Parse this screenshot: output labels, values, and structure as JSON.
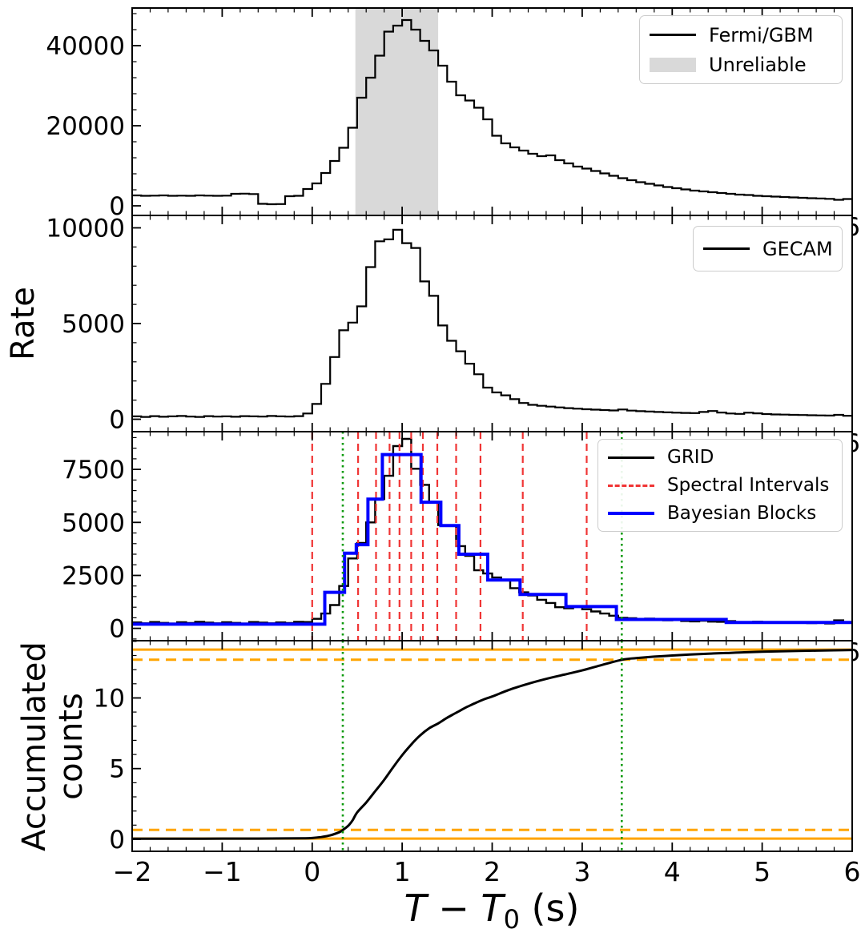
{
  "axes": {
    "xlim": [
      -2,
      6
    ],
    "x_tick_values": [
      -2,
      -1,
      0,
      1,
      2,
      3,
      4,
      5,
      6
    ],
    "x_tick_labels": [
      "−2",
      "−1",
      "0",
      "1",
      "2",
      "3",
      "4",
      "5",
      "6"
    ],
    "x_minor_step": 0.2,
    "xlabel": {
      "variable": "T",
      "minus": "−",
      "reference": "T",
      "reference_sub": "0",
      "unit": "(s)",
      "plain": "T − T0 (s)"
    },
    "ylabel_rate": "Rate",
    "ylabel_accumulated_lines": [
      "Accumulated",
      "counts"
    ],
    "clipped_x_tick_label": "6"
  },
  "colors": {
    "histogram": "#000000",
    "bayesian_blocks": "#0000ff",
    "spectral_intervals": "#f03535",
    "t90_marker": "#0a9a0a",
    "orange_lines": "#ffa500",
    "unreliable_band": "#d9d9d9",
    "legend_border": "#cccccc"
  },
  "chart_data": [
    {
      "type": "bar",
      "subtype": "step-histogram-lightcurve",
      "detector": "Fermi/GBM",
      "ylabel": "Rate",
      "ylim": [
        -2400,
        49400
      ],
      "yticks": [
        0,
        20000,
        40000
      ],
      "yminor_step": 4000,
      "bin_start": -2.0,
      "bin_width": 0.1,
      "rate": [
        2600,
        2500,
        2550,
        2600,
        2500,
        2550,
        2500,
        2600,
        2550,
        2500,
        2550,
        3000,
        3050,
        2950,
        500,
        400,
        450,
        2400,
        2500,
        4200,
        5600,
        8200,
        11200,
        14500,
        19500,
        27000,
        32000,
        37500,
        43500,
        45000,
        46400,
        44000,
        41200,
        38800,
        35000,
        31000,
        27600,
        26300,
        24500,
        21600,
        17500,
        15600,
        14600,
        13800,
        13000,
        12400,
        12600,
        11400,
        10600,
        9800,
        9300,
        8700,
        8100,
        7500,
        6900,
        6400,
        5900,
        5500,
        5100,
        4700,
        4400,
        4100,
        3800,
        3600,
        3400,
        3200,
        3000,
        2800,
        2700,
        2500,
        2400,
        2300,
        2200,
        2100,
        2000,
        1900,
        1850,
        1750,
        1500,
        1700
      ],
      "unreliable_band": [
        0.48,
        1.4
      ],
      "legend": [
        {
          "label": "Fermi/GBM",
          "swatch": "black-line"
        },
        {
          "label": "Unreliable",
          "swatch": "gray-patch"
        }
      ]
    },
    {
      "type": "bar",
      "subtype": "step-histogram-lightcurve",
      "detector": "GECAM",
      "ylabel": "Rate",
      "ylim": [
        -650,
        10650
      ],
      "yticks": [
        0,
        5000,
        10000
      ],
      "yminor_step": 1000,
      "bin_start": -2.0,
      "bin_width": 0.1,
      "rate": [
        150,
        120,
        160,
        130,
        150,
        170,
        140,
        120,
        160,
        140,
        150,
        130,
        160,
        150,
        140,
        170,
        150,
        140,
        160,
        300,
        800,
        1850,
        3250,
        4650,
        5050,
        5900,
        7950,
        9300,
        9400,
        9900,
        9200,
        8950,
        7200,
        6450,
        4900,
        4100,
        3550,
        2900,
        2350,
        1650,
        1400,
        1250,
        1050,
        850,
        750,
        700,
        660,
        620,
        580,
        550,
        520,
        500,
        480,
        460,
        510,
        450,
        420,
        400,
        380,
        360,
        340,
        330,
        320,
        380,
        430,
        350,
        300,
        280,
        340,
        310,
        270,
        250,
        240,
        230,
        220,
        210,
        200,
        190,
        230,
        180
      ],
      "legend": [
        {
          "label": "GECAM",
          "swatch": "black-line"
        }
      ]
    },
    {
      "type": "bar",
      "subtype": "step-histogram-lightcurve-with-blocks",
      "detector": "GRID",
      "ylabel": "Rate",
      "ylim": [
        -580,
        9280
      ],
      "yticks": [
        0,
        2500,
        5000,
        7500
      ],
      "yminor_step": 500,
      "bin_start": -2.0,
      "bin_width": 0.1,
      "rate": [
        280,
        240,
        300,
        260,
        230,
        290,
        250,
        310,
        270,
        240,
        290,
        260,
        230,
        300,
        270,
        240,
        280,
        250,
        310,
        300,
        450,
        700,
        1100,
        2000,
        3300,
        4030,
        5000,
        6100,
        7200,
        8600,
        8940,
        7530,
        6770,
        5970,
        4870,
        4830,
        3880,
        3420,
        2740,
        2590,
        2400,
        2280,
        1900,
        1700,
        1550,
        1350,
        1200,
        1000,
        950,
        1030,
        900,
        800,
        700,
        600,
        500,
        480,
        430,
        460,
        400,
        380,
        410,
        350,
        330,
        360,
        320,
        310,
        340,
        300,
        280,
        320,
        290,
        270,
        300,
        260,
        280,
        250,
        270,
        230,
        380,
        260
      ],
      "spectral_intervals": [
        0.0,
        0.51,
        0.71,
        0.86,
        0.97,
        1.1,
        1.23,
        1.39,
        1.6,
        1.87,
        2.34,
        3.05
      ],
      "bayesian_blocks": {
        "edges": [
          -2.0,
          0.14,
          0.36,
          0.49,
          0.62,
          0.78,
          1.21,
          1.43,
          1.63,
          1.95,
          2.31,
          2.82,
          3.38,
          4.6,
          6.0
        ],
        "values": [
          200,
          1700,
          3550,
          3950,
          6100,
          8200,
          5950,
          4850,
          3500,
          2280,
          1600,
          1030,
          420,
          280
        ]
      },
      "t90_interval": [
        0.34,
        3.44
      ],
      "legend": [
        {
          "label": "GRID",
          "swatch": "black-line"
        },
        {
          "label": "Spectral Intervals",
          "swatch": "red-dashed"
        },
        {
          "label": "Bayesian Blocks",
          "swatch": "blue-line"
        }
      ]
    },
    {
      "type": "line",
      "subtype": "cumulative-counts",
      "quantity": "Accumulated counts",
      "ylim": [
        -0.85,
        14.05
      ],
      "yticks": [
        0,
        5,
        10
      ],
      "yminor_step": 1,
      "points": [
        [
          -2,
          0.04
        ],
        [
          -1.5,
          0.04
        ],
        [
          -1,
          0.05
        ],
        [
          -0.6,
          0.05
        ],
        [
          -0.3,
          0.06
        ],
        [
          -0.1,
          0.07
        ],
        [
          0,
          0.09
        ],
        [
          0.1,
          0.16
        ],
        [
          0.2,
          0.28
        ],
        [
          0.3,
          0.5
        ],
        [
          0.34,
          0.66
        ],
        [
          0.4,
          0.95
        ],
        [
          0.45,
          1.35
        ],
        [
          0.5,
          1.9
        ],
        [
          0.6,
          2.6
        ],
        [
          0.7,
          3.4
        ],
        [
          0.8,
          4.2
        ],
        [
          0.9,
          5.1
        ],
        [
          1.0,
          5.95
        ],
        [
          1.1,
          6.7
        ],
        [
          1.2,
          7.35
        ],
        [
          1.3,
          7.85
        ],
        [
          1.4,
          8.2
        ],
        [
          1.5,
          8.6
        ],
        [
          1.6,
          8.95
        ],
        [
          1.7,
          9.3
        ],
        [
          1.8,
          9.6
        ],
        [
          1.9,
          9.88
        ],
        [
          2.0,
          10.1
        ],
        [
          2.2,
          10.6
        ],
        [
          2.4,
          11.0
        ],
        [
          2.6,
          11.35
        ],
        [
          2.8,
          11.65
        ],
        [
          3.0,
          11.95
        ],
        [
          3.2,
          12.3
        ],
        [
          3.44,
          12.7
        ],
        [
          3.6,
          12.82
        ],
        [
          3.8,
          12.92
        ],
        [
          4.0,
          13.0
        ],
        [
          4.2,
          13.07
        ],
        [
          4.4,
          13.13
        ],
        [
          4.6,
          13.18
        ],
        [
          4.8,
          13.23
        ],
        [
          5.0,
          13.27
        ],
        [
          5.2,
          13.3
        ],
        [
          5.4,
          13.33
        ],
        [
          5.6,
          13.35
        ],
        [
          5.8,
          13.37
        ],
        [
          6.0,
          13.39
        ]
      ],
      "orange_solid_levels": [
        0.05,
        13.42
      ],
      "orange_dashed_levels": [
        0.67,
        12.7
      ],
      "t90_interval": [
        0.34,
        3.44
      ]
    }
  ]
}
